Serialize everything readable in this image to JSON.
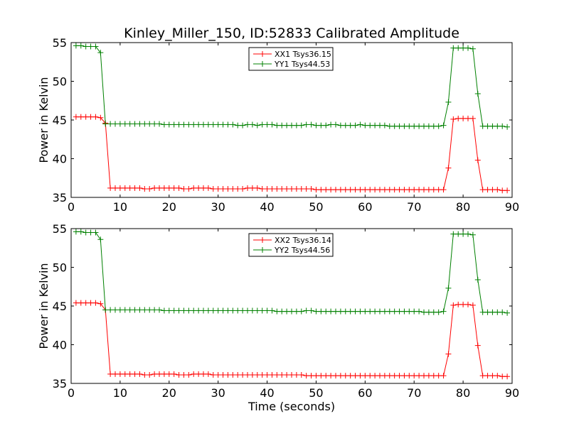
{
  "figure": {
    "title": "Kinley_Miller_150, ID:52833 Calibrated Amplitude"
  },
  "chart_data": [
    {
      "type": "line",
      "title": "Kinley_Miller_150, ID:52833 Calibrated Amplitude",
      "xlabel": "",
      "ylabel": "Power in Kelvin",
      "xlim": [
        0,
        90
      ],
      "ylim": [
        35,
        55
      ],
      "xticks": [
        0,
        10,
        20,
        30,
        40,
        50,
        60,
        70,
        80,
        90
      ],
      "yticks": [
        35,
        40,
        45,
        50,
        55
      ],
      "grid": false,
      "legend": "top-center",
      "series": [
        {
          "name": "XX1 Tsys36.15",
          "color": "#ff0000",
          "x": [
            1,
            2,
            3,
            4,
            5,
            6,
            7,
            8,
            9,
            10,
            11,
            12,
            13,
            14,
            15,
            16,
            17,
            18,
            19,
            20,
            21,
            22,
            23,
            24,
            25,
            26,
            27,
            28,
            29,
            30,
            31,
            32,
            33,
            34,
            35,
            36,
            37,
            38,
            39,
            40,
            41,
            42,
            43,
            44,
            45,
            46,
            47,
            48,
            49,
            50,
            51,
            52,
            53,
            54,
            55,
            56,
            57,
            58,
            59,
            60,
            61,
            62,
            63,
            64,
            65,
            66,
            67,
            68,
            69,
            70,
            71,
            72,
            73,
            74,
            75,
            76,
            77,
            78,
            79,
            80,
            81,
            82,
            83,
            84,
            85,
            86,
            87,
            88,
            89
          ],
          "y": [
            45.4,
            45.4,
            45.4,
            45.4,
            45.4,
            45.3,
            44.6,
            36.2,
            36.2,
            36.2,
            36.2,
            36.2,
            36.2,
            36.2,
            36.1,
            36.1,
            36.2,
            36.2,
            36.2,
            36.2,
            36.2,
            36.2,
            36.1,
            36.1,
            36.2,
            36.2,
            36.2,
            36.2,
            36.1,
            36.1,
            36.1,
            36.1,
            36.1,
            36.1,
            36.1,
            36.2,
            36.2,
            36.2,
            36.1,
            36.1,
            36.1,
            36.1,
            36.1,
            36.1,
            36.1,
            36.1,
            36.1,
            36.1,
            36.1,
            36.0,
            36.0,
            36.0,
            36.0,
            36.0,
            36.0,
            36.0,
            36.0,
            36.0,
            36.0,
            36.0,
            36.0,
            36.0,
            36.0,
            36.0,
            36.0,
            36.0,
            36.0,
            36.0,
            36.0,
            36.0,
            36.0,
            36.0,
            36.0,
            36.0,
            36.0,
            36.0,
            38.8,
            45.1,
            45.2,
            45.2,
            45.2,
            45.2,
            39.8,
            36.0,
            36.0,
            36.0,
            36.0,
            35.9,
            35.9
          ]
        },
        {
          "name": "YY1 Tsys44.53",
          "color": "#008000",
          "x": [
            1,
            2,
            3,
            4,
            5,
            6,
            7,
            8,
            9,
            10,
            11,
            12,
            13,
            14,
            15,
            16,
            17,
            18,
            19,
            20,
            21,
            22,
            23,
            24,
            25,
            26,
            27,
            28,
            29,
            30,
            31,
            32,
            33,
            34,
            35,
            36,
            37,
            38,
            39,
            40,
            41,
            42,
            43,
            44,
            45,
            46,
            47,
            48,
            49,
            50,
            51,
            52,
            53,
            54,
            55,
            56,
            57,
            58,
            59,
            60,
            61,
            62,
            63,
            64,
            65,
            66,
            67,
            68,
            69,
            70,
            71,
            72,
            73,
            74,
            75,
            76,
            77,
            78,
            79,
            80,
            81,
            82,
            83,
            84,
            85,
            86,
            87,
            88,
            89
          ],
          "y": [
            54.6,
            54.6,
            54.5,
            54.5,
            54.5,
            53.7,
            44.5,
            44.5,
            44.5,
            44.5,
            44.5,
            44.5,
            44.5,
            44.5,
            44.5,
            44.5,
            44.5,
            44.5,
            44.4,
            44.4,
            44.4,
            44.4,
            44.4,
            44.4,
            44.4,
            44.4,
            44.4,
            44.4,
            44.4,
            44.4,
            44.4,
            44.4,
            44.4,
            44.3,
            44.3,
            44.4,
            44.4,
            44.3,
            44.4,
            44.4,
            44.4,
            44.3,
            44.3,
            44.3,
            44.3,
            44.3,
            44.3,
            44.4,
            44.4,
            44.3,
            44.3,
            44.3,
            44.4,
            44.4,
            44.3,
            44.3,
            44.3,
            44.3,
            44.4,
            44.3,
            44.3,
            44.3,
            44.3,
            44.3,
            44.2,
            44.2,
            44.2,
            44.2,
            44.2,
            44.2,
            44.2,
            44.2,
            44.2,
            44.2,
            44.2,
            44.3,
            47.3,
            54.3,
            54.3,
            54.3,
            54.3,
            54.2,
            48.4,
            44.2,
            44.2,
            44.2,
            44.2,
            44.2,
            44.1
          ]
        }
      ]
    },
    {
      "type": "line",
      "title": "",
      "xlabel": "Time (seconds)",
      "ylabel": "Power in Kelvin",
      "xlim": [
        0,
        90
      ],
      "ylim": [
        35,
        55
      ],
      "xticks": [
        0,
        10,
        20,
        30,
        40,
        50,
        60,
        70,
        80,
        90
      ],
      "yticks": [
        35,
        40,
        45,
        50,
        55
      ],
      "grid": false,
      "legend": "top-center",
      "series": [
        {
          "name": "XX2 Tsys36.14",
          "color": "#ff0000",
          "x": [
            1,
            2,
            3,
            4,
            5,
            6,
            7,
            8,
            9,
            10,
            11,
            12,
            13,
            14,
            15,
            16,
            17,
            18,
            19,
            20,
            21,
            22,
            23,
            24,
            25,
            26,
            27,
            28,
            29,
            30,
            31,
            32,
            33,
            34,
            35,
            36,
            37,
            38,
            39,
            40,
            41,
            42,
            43,
            44,
            45,
            46,
            47,
            48,
            49,
            50,
            51,
            52,
            53,
            54,
            55,
            56,
            57,
            58,
            59,
            60,
            61,
            62,
            63,
            64,
            65,
            66,
            67,
            68,
            69,
            70,
            71,
            72,
            73,
            74,
            75,
            76,
            77,
            78,
            79,
            80,
            81,
            82,
            83,
            84,
            85,
            86,
            87,
            88,
            89
          ],
          "y": [
            45.4,
            45.4,
            45.4,
            45.4,
            45.4,
            45.3,
            44.5,
            36.2,
            36.2,
            36.2,
            36.2,
            36.2,
            36.2,
            36.2,
            36.1,
            36.1,
            36.2,
            36.2,
            36.2,
            36.2,
            36.2,
            36.1,
            36.1,
            36.1,
            36.2,
            36.2,
            36.2,
            36.2,
            36.1,
            36.1,
            36.1,
            36.1,
            36.1,
            36.1,
            36.1,
            36.1,
            36.1,
            36.1,
            36.1,
            36.1,
            36.1,
            36.1,
            36.1,
            36.1,
            36.1,
            36.1,
            36.1,
            36.0,
            36.0,
            36.0,
            36.0,
            36.0,
            36.0,
            36.0,
            36.0,
            36.0,
            36.0,
            36.0,
            36.0,
            36.0,
            36.0,
            36.0,
            36.0,
            36.0,
            36.0,
            36.0,
            36.0,
            36.0,
            36.0,
            36.0,
            36.0,
            36.0,
            36.0,
            36.0,
            36.0,
            36.0,
            38.8,
            45.1,
            45.2,
            45.2,
            45.2,
            45.1,
            39.9,
            36.0,
            36.0,
            36.0,
            36.0,
            35.9,
            35.9
          ]
        },
        {
          "name": "YY2 Tsys44.56",
          "color": "#008000",
          "x": [
            1,
            2,
            3,
            4,
            5,
            6,
            7,
            8,
            9,
            10,
            11,
            12,
            13,
            14,
            15,
            16,
            17,
            18,
            19,
            20,
            21,
            22,
            23,
            24,
            25,
            26,
            27,
            28,
            29,
            30,
            31,
            32,
            33,
            34,
            35,
            36,
            37,
            38,
            39,
            40,
            41,
            42,
            43,
            44,
            45,
            46,
            47,
            48,
            49,
            50,
            51,
            52,
            53,
            54,
            55,
            56,
            57,
            58,
            59,
            60,
            61,
            62,
            63,
            64,
            65,
            66,
            67,
            68,
            69,
            70,
            71,
            72,
            73,
            74,
            75,
            76,
            77,
            78,
            79,
            80,
            81,
            82,
            83,
            84,
            85,
            86,
            87,
            88,
            89
          ],
          "y": [
            54.6,
            54.6,
            54.5,
            54.5,
            54.5,
            53.6,
            44.5,
            44.5,
            44.5,
            44.5,
            44.5,
            44.5,
            44.5,
            44.5,
            44.5,
            44.5,
            44.5,
            44.5,
            44.4,
            44.4,
            44.4,
            44.4,
            44.4,
            44.4,
            44.4,
            44.4,
            44.4,
            44.4,
            44.4,
            44.4,
            44.4,
            44.4,
            44.4,
            44.4,
            44.4,
            44.4,
            44.4,
            44.4,
            44.4,
            44.4,
            44.4,
            44.3,
            44.3,
            44.3,
            44.3,
            44.3,
            44.3,
            44.4,
            44.4,
            44.3,
            44.3,
            44.3,
            44.3,
            44.3,
            44.3,
            44.3,
            44.3,
            44.3,
            44.3,
            44.3,
            44.3,
            44.3,
            44.3,
            44.3,
            44.3,
            44.3,
            44.3,
            44.3,
            44.3,
            44.3,
            44.3,
            44.2,
            44.2,
            44.2,
            44.2,
            44.3,
            47.3,
            54.3,
            54.3,
            54.3,
            54.3,
            54.2,
            48.4,
            44.2,
            44.2,
            44.2,
            44.2,
            44.2,
            44.1
          ]
        }
      ]
    }
  ]
}
